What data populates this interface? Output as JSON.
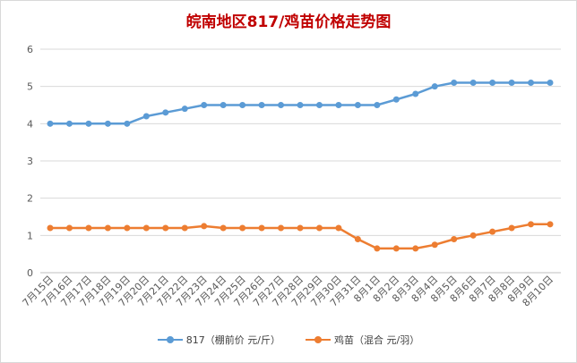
{
  "chart_data": {
    "type": "line",
    "title": "皖南地区817/鸡苗价格走势图",
    "xlabel": "",
    "ylabel": "",
    "ylim": [
      0,
      6
    ],
    "yticks": [
      "0",
      "1",
      "2",
      "3",
      "4",
      "5",
      "6"
    ],
    "grid": true,
    "legend_position": "bottom",
    "categories": [
      "7月15日",
      "7月16日",
      "7月17日",
      "7月18日",
      "7月19日",
      "7月20日",
      "7月21日",
      "7月22日",
      "7月23日",
      "7月24日",
      "7月25日",
      "7月26日",
      "7月27日",
      "7月28日",
      "7月29日",
      "7月30日",
      "7月31日",
      "8月1日",
      "8月2日",
      "8月3日",
      "8月4日",
      "8月5日",
      "8月6日",
      "8月7日",
      "8月8日",
      "8月9日",
      "8月10日"
    ],
    "series": [
      {
        "name": "817（棚前价 元/斤）",
        "color": "#5b9bd5",
        "values": [
          4.0,
          4.0,
          4.0,
          4.0,
          4.0,
          4.2,
          4.3,
          4.4,
          4.5,
          4.5,
          4.5,
          4.5,
          4.5,
          4.5,
          4.5,
          4.5,
          4.5,
          4.5,
          4.65,
          4.8,
          5.0,
          5.1,
          5.1,
          5.1,
          5.1,
          5.1,
          5.1
        ]
      },
      {
        "name": "鸡苗（混合 元/羽）",
        "color": "#ed7d31",
        "values": [
          1.2,
          1.2,
          1.2,
          1.2,
          1.2,
          1.2,
          1.2,
          1.2,
          1.25,
          1.2,
          1.2,
          1.2,
          1.2,
          1.2,
          1.2,
          1.2,
          0.9,
          0.65,
          0.65,
          0.65,
          0.75,
          0.9,
          1.0,
          1.1,
          1.2,
          1.3,
          1.3
        ]
      }
    ]
  }
}
